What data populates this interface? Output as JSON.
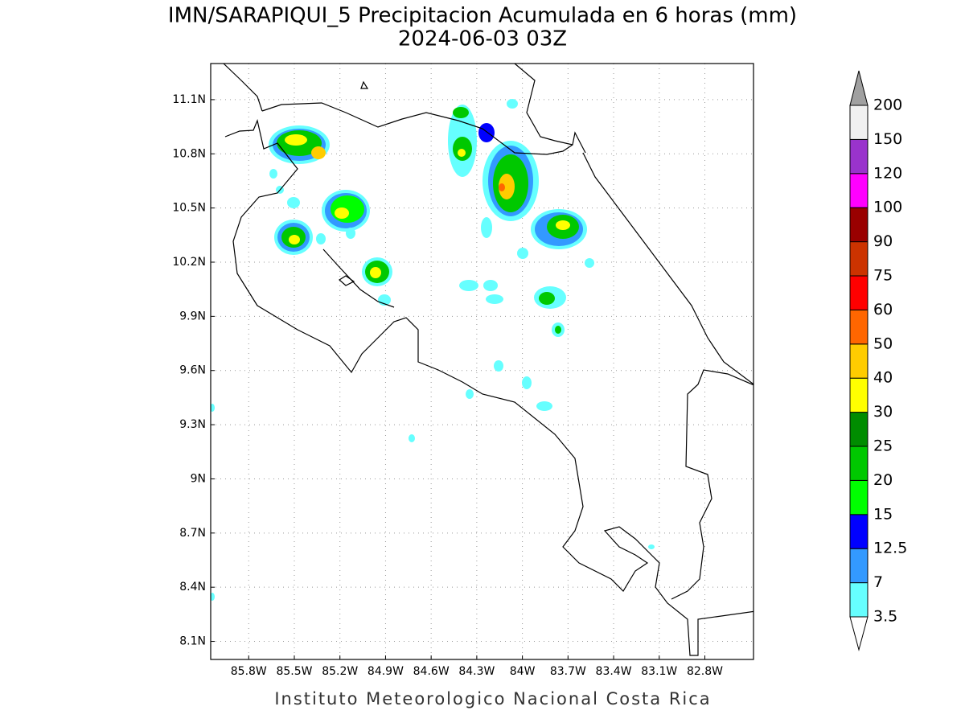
{
  "title": "IMN/SARAPIQUI_5 Precipitacion Acumulada en 6 horas (mm)",
  "subtitle": "2024-06-03 03Z",
  "footer": "Instituto Meteorologico Nacional Costa Rica",
  "map": {
    "xlim": [
      -86.05,
      -82.48
    ],
    "ylim": [
      8.0,
      11.3
    ],
    "xticks": [
      {
        "value": -85.8,
        "label": "85.8W"
      },
      {
        "value": -85.5,
        "label": "85.5W"
      },
      {
        "value": -85.2,
        "label": "85.2W"
      },
      {
        "value": -84.9,
        "label": "84.9W"
      },
      {
        "value": -84.6,
        "label": "84.6W"
      },
      {
        "value": -84.3,
        "label": "84.3W"
      },
      {
        "value": -84.0,
        "label": "84W"
      },
      {
        "value": -83.7,
        "label": "83.7W"
      },
      {
        "value": -83.4,
        "label": "83.4W"
      },
      {
        "value": -83.1,
        "label": "83.1W"
      },
      {
        "value": -82.8,
        "label": "82.8W"
      }
    ],
    "yticks": [
      {
        "value": 8.1,
        "label": "8.1N"
      },
      {
        "value": 8.4,
        "label": "8.4N"
      },
      {
        "value": 8.7,
        "label": "8.7N"
      },
      {
        "value": 9.0,
        "label": "9N"
      },
      {
        "value": 9.3,
        "label": "9.3N"
      },
      {
        "value": 9.6,
        "label": "9.6N"
      },
      {
        "value": 9.9,
        "label": "9.9N"
      },
      {
        "value": 10.2,
        "label": "10.2N"
      },
      {
        "value": 10.5,
        "label": "10.5N"
      },
      {
        "value": 10.8,
        "label": "10.8N"
      },
      {
        "value": 11.1,
        "label": "11.1N"
      }
    ],
    "grid": true
  },
  "colorbar": {
    "levels": [
      3.5,
      7,
      12.5,
      15,
      20,
      25,
      30,
      40,
      50,
      60,
      75,
      90,
      100,
      120,
      150,
      200
    ],
    "colors": [
      "#66ffff",
      "#3399ff",
      "#0000ff",
      "#00ff00",
      "#00c800",
      "#008c00",
      "#ffff00",
      "#ffcc00",
      "#ff6600",
      "#ff0000",
      "#cc3300",
      "#990000",
      "#ff00ff",
      "#9933cc",
      "#f0f0f0"
    ],
    "below_color": "#ffffff",
    "above_color": "#a0a0a0"
  }
}
